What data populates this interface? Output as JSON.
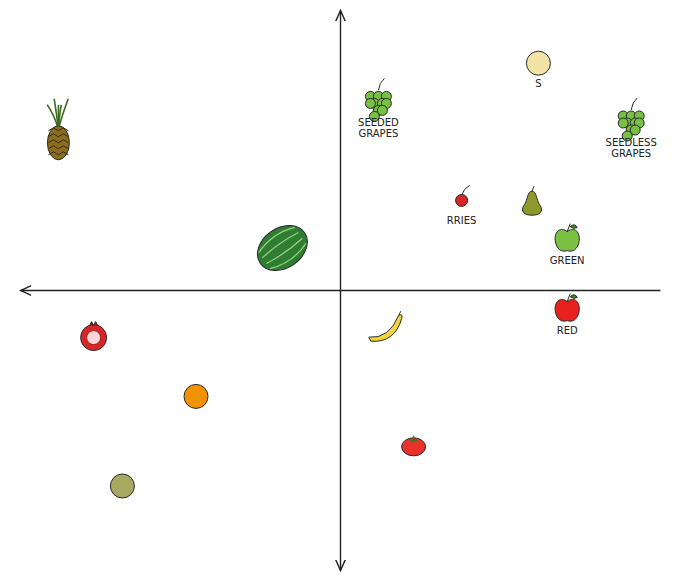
{
  "chart_data": {
    "type": "scatter",
    "tick_labels": false,
    "xlim": [
      -10,
      10
    ],
    "ylim": [
      -10,
      10
    ],
    "series": [
      {
        "color": "#8b6d1f",
        "marker": "pineapple",
        "x": [
          -8.8
        ],
        "values": [
          5.4
        ]
      },
      {
        "color": "#2e7d32",
        "marker": "watermelon",
        "x": [
          -1.8
        ],
        "values": [
          1.5
        ]
      },
      {
        "color": "#d62728",
        "marker": "pomegranate",
        "x": [
          -7.7
        ],
        "values": [
          -1.7
        ]
      },
      {
        "color": "#f39200",
        "marker": "round",
        "x": [
          -4.5
        ],
        "values": [
          -3.8
        ]
      },
      {
        "color": "#a8a860",
        "marker": "round",
        "x": [
          -6.8
        ],
        "values": [
          -7.0
        ]
      },
      {
        "color": "#f2d338",
        "marker": "banana",
        "x": [
          1.4
        ],
        "values": [
          -1.4
        ]
      },
      {
        "color": "#e8322b",
        "marker": "tomato",
        "x": [
          2.3
        ],
        "values": [
          -5.6
        ]
      },
      {
        "color": "#77c043",
        "marker": "grapes",
        "x": [
          1.2
        ],
        "values": [
          6.7
        ],
        "labels": [
          "SEEDED GRAPES"
        ]
      },
      {
        "color": "#f1e3a6",
        "marker": "round",
        "x": [
          6.2
        ],
        "values": [
          8.1
        ],
        "labels": [
          "S"
        ]
      },
      {
        "color": "#77c043",
        "marker": "grapes",
        "x": [
          9.1
        ],
        "values": [
          6.0
        ],
        "labels": [
          "SEEDLESS GRAPES"
        ]
      },
      {
        "color": "#d62728",
        "marker": "cherry",
        "x": [
          3.8
        ],
        "values": [
          3.2
        ],
        "labels": [
          "RRIES"
        ]
      },
      {
        "color": "#8d9a2a",
        "marker": "pear",
        "x": [
          6.0
        ],
        "values": [
          3.1
        ]
      },
      {
        "color": "#7bc043",
        "marker": "apple",
        "x": [
          7.1
        ],
        "values": [
          1.8
        ],
        "labels": [
          "GREEN"
        ]
      },
      {
        "color": "#e8201e",
        "marker": "apple",
        "x": [
          7.1
        ],
        "values": [
          -0.7
        ],
        "labels": [
          "RED"
        ]
      }
    ]
  }
}
